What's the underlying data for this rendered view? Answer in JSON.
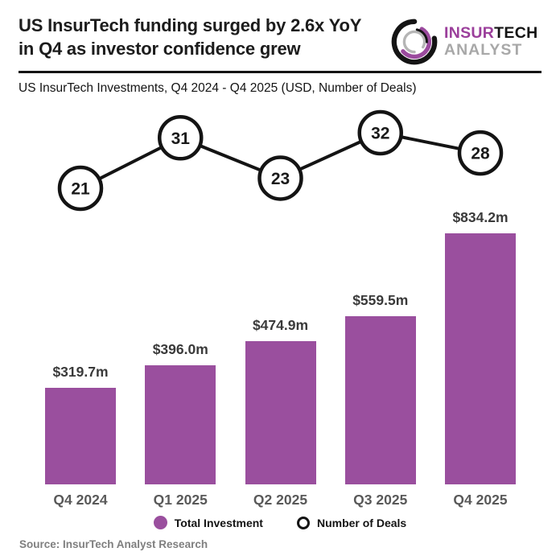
{
  "header": {
    "title_line1": "US InsurTech funding surged by 2.6x YoY",
    "title_line2": "in Q4 as investor confidence grew",
    "logo": {
      "part1": "INSUR",
      "part2": "TECH",
      "line2": "ANALYST",
      "purple": "#9b3f9b",
      "black": "#141414",
      "gray": "#a8a8a8"
    }
  },
  "subtitle": "US InsurTech Investments, Q4 2024 - Q4 2025 (USD, Number of Deals)",
  "chart_data": {
    "type": "bar",
    "title": "US InsurTech Investments, Q4 2024 - Q4 2025 (USD, Number of Deals)",
    "categories": [
      "Q4 2024",
      "Q1 2025",
      "Q2 2025",
      "Q3 2025",
      "Q4 2025"
    ],
    "series": [
      {
        "name": "Total Investment",
        "type": "bar",
        "unit": "USD millions",
        "values": [
          319.7,
          396.0,
          474.9,
          559.5,
          834.2
        ],
        "labels": [
          "$319.7m",
          "$396.0m",
          "$474.9m",
          "$559.5m",
          "$834.2m"
        ],
        "color": "#9a4f9e"
      },
      {
        "name": "Number of Deals",
        "type": "line",
        "unit": "deals",
        "values": [
          21,
          31,
          23,
          32,
          28
        ],
        "marker": "open-circle",
        "line_color": "#141414"
      }
    ],
    "xlabel": "",
    "ylabel": "",
    "grid": false,
    "value_axis_hidden": true,
    "legend_position": "bottom"
  },
  "legend": {
    "items": [
      {
        "label": "Total Investment",
        "marker": "filled-circle",
        "color": "#9a4f9e"
      },
      {
        "label": "Number of Deals",
        "marker": "open-circle",
        "color": "#ffffff"
      }
    ]
  },
  "source": "Source: InsurTech Analyst Research"
}
